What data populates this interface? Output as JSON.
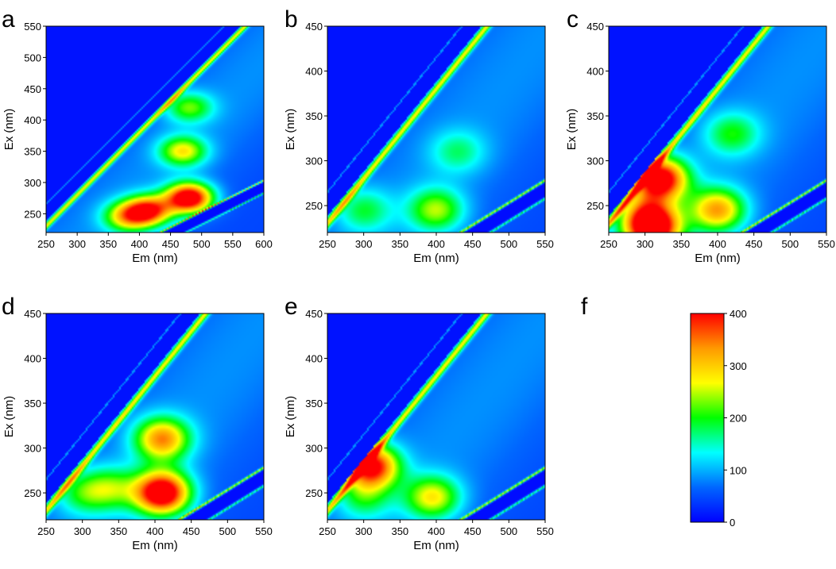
{
  "chart_data": [
    {
      "panel_label": "a",
      "type": "heatmap",
      "xlabel": "Em (nm)",
      "ylabel": "Ex (nm)",
      "xlim": [
        250,
        600
      ],
      "ylim": [
        220,
        550
      ],
      "xticks": [
        250,
        300,
        350,
        400,
        450,
        500,
        550,
        600
      ],
      "yticks": [
        250,
        300,
        350,
        400,
        450,
        500,
        550
      ],
      "peaks": [
        {
          "em": 480,
          "ex": 275,
          "intensity": 400
        },
        {
          "em": 415,
          "ex": 255,
          "intensity": 300
        },
        {
          "em": 380,
          "ex": 245,
          "intensity": 200
        },
        {
          "em": 470,
          "ex": 350,
          "intensity": 200
        },
        {
          "em": 480,
          "ex": 420,
          "intensity": 150
        }
      ]
    },
    {
      "panel_label": "b",
      "type": "heatmap",
      "xlabel": "Em (nm)",
      "ylabel": "Ex (nm)",
      "xlim": [
        250,
        550
      ],
      "ylim": [
        220,
        450
      ],
      "xticks": [
        250,
        300,
        350,
        400,
        450,
        500,
        550
      ],
      "yticks": [
        250,
        300,
        350,
        400,
        450
      ],
      "peaks": [
        {
          "em": 400,
          "ex": 245,
          "intensity": 170
        },
        {
          "em": 300,
          "ex": 245,
          "intensity": 110
        },
        {
          "em": 430,
          "ex": 310,
          "intensity": 90
        }
      ]
    },
    {
      "panel_label": "c",
      "type": "heatmap",
      "xlabel": "Em (nm)",
      "ylabel": "Ex (nm)",
      "xlim": [
        250,
        550
      ],
      "ylim": [
        220,
        450
      ],
      "xticks": [
        250,
        300,
        350,
        400,
        450,
        500,
        550
      ],
      "yticks": [
        250,
        300,
        350,
        400,
        450
      ],
      "peaks": [
        {
          "em": 400,
          "ex": 245,
          "intensity": 250
        },
        {
          "em": 310,
          "ex": 225,
          "intensity": 400
        },
        {
          "em": 320,
          "ex": 280,
          "intensity": 380
        },
        {
          "em": 420,
          "ex": 330,
          "intensity": 120
        },
        {
          "em": 300,
          "ex": 245,
          "intensity": 130
        }
      ]
    },
    {
      "panel_label": "d",
      "type": "heatmap",
      "xlabel": "Em (nm)",
      "ylabel": "Ex (nm)",
      "xlim": [
        250,
        550
      ],
      "ylim": [
        220,
        450
      ],
      "xticks": [
        250,
        300,
        350,
        400,
        450,
        500,
        550
      ],
      "yticks": [
        250,
        300,
        350,
        400,
        450
      ],
      "peaks": [
        {
          "em": 410,
          "ex": 250,
          "intensity": 400
        },
        {
          "em": 410,
          "ex": 310,
          "intensity": 260
        },
        {
          "em": 340,
          "ex": 255,
          "intensity": 130
        },
        {
          "em": 300,
          "ex": 250,
          "intensity": 110
        }
      ]
    },
    {
      "panel_label": "e",
      "type": "heatmap",
      "xlabel": "Em (nm)",
      "ylabel": "Ex (nm)",
      "xlim": [
        250,
        550
      ],
      "ylim": [
        220,
        450
      ],
      "xticks": [
        250,
        300,
        350,
        400,
        450,
        500,
        550
      ],
      "yticks": [
        250,
        300,
        350,
        400,
        450
      ],
      "peaks": [
        {
          "em": 395,
          "ex": 245,
          "intensity": 200
        },
        {
          "em": 310,
          "ex": 280,
          "intensity": 350
        },
        {
          "em": 300,
          "ex": 245,
          "intensity": 110
        }
      ]
    }
  ],
  "colorbar": {
    "panel_label": "f",
    "min": 0,
    "max": 400,
    "ticks": [
      0,
      100,
      200,
      300,
      400
    ],
    "colors": [
      "#0000ff",
      "#0066ff",
      "#00ffff",
      "#00ff00",
      "#ffff00",
      "#ff9900",
      "#ff0000"
    ]
  }
}
